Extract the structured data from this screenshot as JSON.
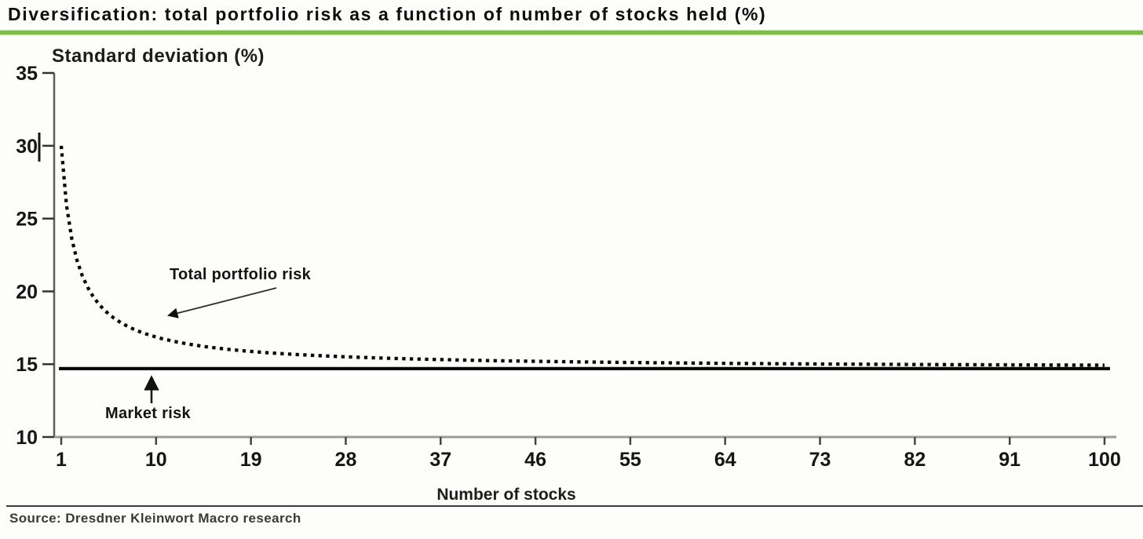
{
  "page": {
    "title": "Diversification: total portfolio risk as a function of number of stocks held (%)",
    "source": "Source: Dresdner Kleinwort Macro research",
    "accent_green": "#7ac143"
  },
  "chart_data": {
    "type": "line",
    "title": "Diversification: total portfolio risk as a function of number of stocks held (%)",
    "ylabel": "Standard deviation (%)",
    "xlabel": "Number of stocks",
    "xlim": [
      1,
      100
    ],
    "ylim": [
      10,
      35
    ],
    "x_ticks": [
      1,
      10,
      19,
      28,
      37,
      46,
      55,
      64,
      73,
      82,
      91,
      100
    ],
    "y_ticks": [
      35,
      30,
      25,
      20,
      15,
      10
    ],
    "grid": false,
    "legend_position": "inline-annotations",
    "series": [
      {
        "name": "Total portfolio risk",
        "style": "dotted",
        "color": "#000000",
        "model": "sigma(n) = sqrt(market_risk^2 + (single_stock_risk^2 - market_risk^2)/n)",
        "market_risk": 14.7,
        "single_stock_risk": 30,
        "x": [
          1,
          2,
          3,
          4,
          5,
          6,
          7,
          8,
          9,
          10,
          12,
          15,
          19,
          23,
          28,
          33,
          37,
          42,
          46,
          50,
          55,
          60,
          64,
          70,
          73,
          78,
          82,
          87,
          91,
          95,
          100
        ],
        "y": [
          30.0,
          23.6,
          21.1,
          19.7,
          18.8,
          18.2,
          17.7,
          17.4,
          17.1,
          16.9,
          16.5,
          16.2,
          15.9,
          15.7,
          15.5,
          15.4,
          15.3,
          15.2,
          15.2,
          15.1,
          15.1,
          15.1,
          15.0,
          15.0,
          15.0,
          15.0,
          14.97,
          14.96,
          14.95,
          14.94,
          14.93
        ]
      },
      {
        "name": "Market risk",
        "style": "solid",
        "color": "#000000",
        "value": 14.7
      }
    ],
    "annotations": [
      {
        "text": "Total portfolio risk",
        "points_to": "dotted curve near 10 stocks"
      },
      {
        "text": "Market risk",
        "points_to": "solid horizontal market risk line"
      }
    ]
  }
}
